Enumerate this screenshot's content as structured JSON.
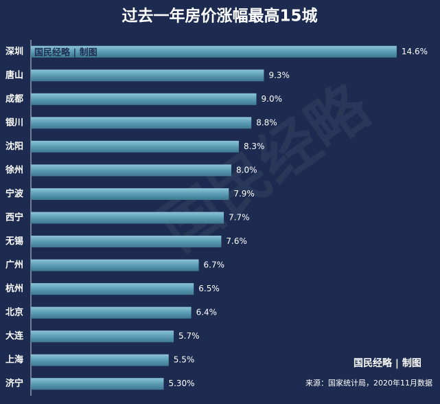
{
  "chart_data": {
    "type": "barh",
    "title": "过去一年房价涨幅最高15城",
    "categories": [
      "深圳",
      "唐山",
      "成都",
      "银川",
      "沈阳",
      "徐州",
      "宁波",
      "西宁",
      "无锡",
      "广州",
      "杭州",
      "北京",
      "大连",
      "上海",
      "济宁"
    ],
    "values": [
      14.6,
      9.3,
      9.0,
      8.8,
      8.3,
      8.0,
      7.9,
      7.7,
      7.6,
      6.7,
      6.5,
      6.4,
      5.7,
      5.5,
      5.3
    ],
    "value_labels": [
      "14.6%",
      "9.3%",
      "9.0%",
      "8.8%",
      "8.3%",
      "8.0%",
      "7.9%",
      "7.7%",
      "7.6%",
      "6.7%",
      "6.5%",
      "6.4%",
      "5.7%",
      "5.5%",
      "5.30%"
    ],
    "color": "#5b9db3",
    "xlim": [
      0,
      15
    ],
    "credit": "国民经略 | 制图",
    "watermark": "国民经略",
    "source": "来源：国家统计局，2020年11月数据"
  }
}
